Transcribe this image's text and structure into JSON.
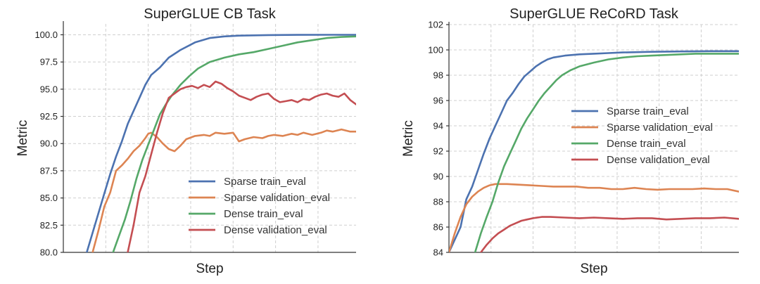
{
  "colors": {
    "sparse_train": "#4c72b0",
    "sparse_val": "#dd8452",
    "dense_train": "#55a868",
    "dense_val": "#c44e52"
  },
  "chart_data": [
    {
      "type": "line",
      "title": "SuperGLUE CB Task",
      "xlabel": "Step",
      "ylabel": "Metric",
      "ylim": [
        80,
        101
      ],
      "xlim": [
        0,
        100
      ],
      "yticks": [
        "80.0",
        "82.5",
        "85.0",
        "87.5",
        "90.0",
        "92.5",
        "95.0",
        "97.5",
        "100.0"
      ],
      "ytick_values": [
        80,
        82.5,
        85,
        87.5,
        90,
        92.5,
        95,
        97.5,
        100
      ],
      "xgrid": [
        14.5,
        29,
        43.5,
        58,
        72.5,
        87
      ],
      "grid": true,
      "legend_position": "lower-right",
      "series": [
        {
          "name": "Sparse train_eval",
          "color_key": "sparse_train",
          "x": [
            8,
            10,
            12,
            14,
            16,
            18,
            20,
            22,
            24,
            26,
            28,
            30,
            33,
            36,
            40,
            45,
            50,
            55,
            60,
            70,
            80,
            90,
            100
          ],
          "y": [
            80,
            81.8,
            83.6,
            85.4,
            87.2,
            88.8,
            90.2,
            91.8,
            93.0,
            94.2,
            95.4,
            96.3,
            97.0,
            97.9,
            98.6,
            99.3,
            99.7,
            99.85,
            99.92,
            99.97,
            99.99,
            100,
            100
          ]
        },
        {
          "name": "Sparse validation_eval",
          "color_key": "sparse_val",
          "x": [
            10,
            12,
            14,
            16,
            18,
            20,
            22,
            24,
            26,
            28,
            29,
            30,
            32,
            34,
            36,
            38,
            40,
            42,
            45,
            48,
            50,
            52,
            55,
            58,
            60,
            62,
            65,
            68,
            70,
            72,
            75,
            78,
            80,
            82,
            85,
            88,
            90,
            92,
            95,
            98,
            100
          ],
          "y": [
            80,
            82.0,
            84.2,
            85.5,
            87.5,
            88.0,
            88.6,
            89.3,
            89.8,
            90.5,
            90.9,
            91.0,
            90.6,
            90.0,
            89.5,
            89.3,
            89.8,
            90.4,
            90.7,
            90.8,
            90.7,
            91.0,
            90.9,
            91.0,
            90.2,
            90.4,
            90.6,
            90.5,
            90.7,
            90.8,
            90.7,
            90.9,
            90.8,
            91.0,
            90.8,
            91.0,
            91.2,
            91.1,
            91.3,
            91.1,
            91.1
          ]
        },
        {
          "name": "Dense train_eval",
          "color_key": "dense_train",
          "x": [
            17,
            19,
            21,
            23,
            25,
            27,
            29,
            31,
            33,
            35,
            37,
            40,
            43,
            46,
            50,
            55,
            60,
            65,
            70,
            75,
            80,
            85,
            90,
            95,
            100
          ],
          "y": [
            80,
            81.5,
            83.0,
            84.8,
            86.8,
            88.5,
            89.9,
            91.3,
            92.7,
            93.6,
            94.4,
            95.4,
            96.2,
            96.9,
            97.5,
            97.9,
            98.2,
            98.4,
            98.7,
            99.0,
            99.3,
            99.5,
            99.7,
            99.8,
            99.85
          ]
        },
        {
          "name": "Dense validation_eval",
          "color_key": "dense_val",
          "x": [
            22,
            24,
            26,
            28,
            30,
            32,
            34,
            36,
            38,
            40,
            42,
            44,
            46,
            48,
            50,
            52,
            54,
            56,
            58,
            60,
            62,
            64,
            66,
            68,
            70,
            72,
            74,
            76,
            78,
            80,
            82,
            84,
            86,
            88,
            90,
            92,
            94,
            96,
            98,
            100
          ],
          "y": [
            80,
            82.5,
            85.5,
            87.0,
            89.0,
            91.0,
            92.8,
            94.2,
            94.6,
            95.0,
            95.2,
            95.3,
            95.1,
            95.4,
            95.2,
            95.7,
            95.5,
            95.1,
            94.8,
            94.4,
            94.2,
            94.0,
            94.3,
            94.5,
            94.6,
            94.1,
            93.8,
            93.9,
            94.0,
            93.8,
            94.1,
            94.0,
            94.3,
            94.5,
            94.6,
            94.4,
            94.3,
            94.6,
            94.0,
            93.6
          ]
        }
      ]
    },
    {
      "type": "line",
      "title": "SuperGLUE ReCoRD Task",
      "xlabel": "Step",
      "ylabel": "Metric",
      "ylim": [
        84,
        102
      ],
      "xlim": [
        0,
        100
      ],
      "yticks": [
        "84",
        "86",
        "88",
        "90",
        "92",
        "94",
        "96",
        "98",
        "100",
        "102"
      ],
      "ytick_values": [
        84,
        86,
        88,
        90,
        92,
        94,
        96,
        98,
        100,
        102
      ],
      "xgrid": [
        14.5,
        29,
        43.5,
        58,
        72.5,
        87
      ],
      "grid": true,
      "legend_position": "center-right",
      "series": [
        {
          "name": "Sparse train_eval",
          "color_key": "sparse_train",
          "x": [
            0,
            2,
            4,
            6,
            8,
            10,
            12,
            14,
            16,
            18,
            20,
            22,
            24,
            26,
            28,
            30,
            32,
            34,
            36,
            40,
            45,
            50,
            55,
            60,
            70,
            80,
            90,
            100
          ],
          "y": [
            84,
            85.0,
            86.0,
            88.2,
            89.2,
            90.5,
            91.8,
            93.0,
            94.0,
            95.0,
            96.0,
            96.6,
            97.3,
            97.9,
            98.3,
            98.7,
            99.0,
            99.25,
            99.4,
            99.55,
            99.65,
            99.7,
            99.75,
            99.8,
            99.85,
            99.88,
            99.9,
            99.9
          ]
        },
        {
          "name": "Sparse validation_eval",
          "color_key": "sparse_val",
          "x": [
            0,
            2,
            4,
            6,
            8,
            10,
            12,
            14,
            16,
            18,
            20,
            24,
            28,
            32,
            36,
            40,
            44,
            48,
            52,
            56,
            60,
            64,
            68,
            72,
            76,
            80,
            84,
            88,
            92,
            96,
            100
          ],
          "y": [
            84,
            85.5,
            86.8,
            87.8,
            88.4,
            88.8,
            89.1,
            89.3,
            89.4,
            89.4,
            89.4,
            89.35,
            89.3,
            89.25,
            89.2,
            89.2,
            89.2,
            89.1,
            89.1,
            89.0,
            89.0,
            89.1,
            89.0,
            88.95,
            89.0,
            89.0,
            89.0,
            89.05,
            89.0,
            89.0,
            88.8
          ]
        },
        {
          "name": "Dense train_eval",
          "color_key": "dense_train",
          "x": [
            9,
            11,
            13,
            15,
            17,
            19,
            21,
            23,
            25,
            27,
            29,
            31,
            33,
            35,
            37,
            39,
            42,
            45,
            50,
            55,
            60,
            65,
            70,
            75,
            80,
            85,
            90,
            95,
            100
          ],
          "y": [
            84,
            85.5,
            86.8,
            88.0,
            89.5,
            90.8,
            91.8,
            92.8,
            93.8,
            94.6,
            95.3,
            96.0,
            96.6,
            97.1,
            97.6,
            98.0,
            98.4,
            98.7,
            99.0,
            99.25,
            99.4,
            99.5,
            99.55,
            99.6,
            99.65,
            99.7,
            99.7,
            99.7,
            99.7
          ]
        },
        {
          "name": "Dense validation_eval",
          "color_key": "dense_val",
          "x": [
            11,
            13,
            15,
            17,
            19,
            21,
            23,
            25,
            27,
            29,
            32,
            35,
            40,
            45,
            50,
            55,
            60,
            65,
            70,
            75,
            80,
            85,
            90,
            95,
            100
          ],
          "y": [
            84,
            84.6,
            85.1,
            85.5,
            85.8,
            86.1,
            86.3,
            86.5,
            86.6,
            86.7,
            86.8,
            86.8,
            86.75,
            86.7,
            86.75,
            86.7,
            86.65,
            86.7,
            86.7,
            86.6,
            86.65,
            86.7,
            86.7,
            86.75,
            86.65
          ]
        }
      ]
    }
  ]
}
